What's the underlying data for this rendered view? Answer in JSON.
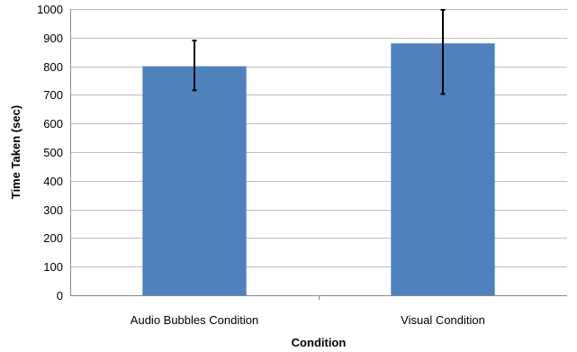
{
  "chart_data": {
    "type": "bar",
    "title": "",
    "xlabel": "Condition",
    "ylabel": "Time Taken (sec)",
    "ylim": [
      0,
      1000
    ],
    "yticks": [
      0,
      100,
      200,
      300,
      400,
      500,
      600,
      700,
      800,
      900,
      1000
    ],
    "categories": [
      "Audio Bubbles Condition",
      "Visual Condition"
    ],
    "values": [
      800,
      880
    ],
    "error_low": [
      713,
      700
    ],
    "error_high": [
      893,
      1000
    ],
    "grid": "horizontal",
    "bar_color": "#4F81BD",
    "legend": "none"
  }
}
